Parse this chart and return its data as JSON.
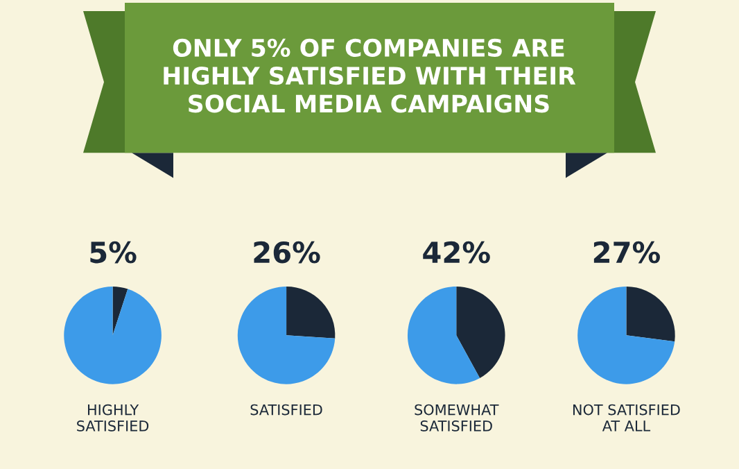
{
  "chart_data": [
    {
      "type": "other",
      "title": "ONLY 5% OF COMPANIES ARE\nHIGHLY SATISFIED WITH THEIR\nSOCIAL MEDIA CAMPAIGNS"
    },
    {
      "type": "pie",
      "title": "5%",
      "xlabel": "HIGHLY\nSATISFIED",
      "categories": [
        null,
        null
      ],
      "values": [
        5,
        95
      ],
      "colors": [
        "#1b2838",
        "#3d9be9"
      ]
    },
    {
      "type": "pie",
      "title": "26%",
      "xlabel": "SATISFIED",
      "categories": [
        null,
        null
      ],
      "values": [
        26,
        74
      ],
      "colors": [
        "#1b2838",
        "#3d9be9"
      ]
    },
    {
      "type": "pie",
      "title": "42%",
      "xlabel": "SOMEWHAT\nSATISFIED",
      "categories": [
        null,
        null
      ],
      "values": [
        42,
        58
      ],
      "colors": [
        "#1b2838",
        "#3d9be9"
      ]
    },
    {
      "type": "pie",
      "title": "27%",
      "xlabel": "NOT SATISFIED\nAT ALL",
      "categories": [
        null,
        null
      ],
      "values": [
        27,
        73
      ],
      "colors": [
        "#1b2838",
        "#3d9be9"
      ]
    }
  ]
}
